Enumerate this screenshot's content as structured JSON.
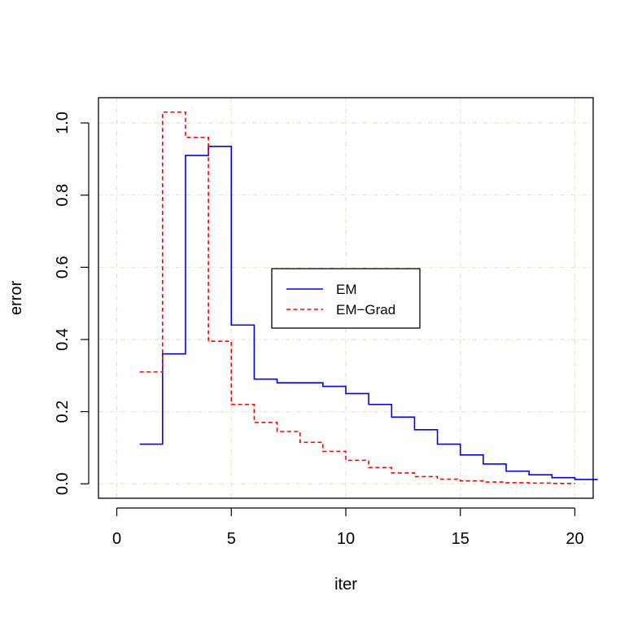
{
  "chart_data": {
    "type": "line",
    "step": "stairs",
    "xlabel": "iter",
    "ylabel": "error",
    "xlim": [
      -0.8,
      20.8
    ],
    "ylim": [
      -0.04,
      1.07
    ],
    "x_ticks": [
      0,
      5,
      10,
      15,
      20
    ],
    "x_tick_labels": [
      "0",
      "5",
      "10",
      "15",
      "20"
    ],
    "y_ticks": [
      0.0,
      0.2,
      0.4,
      0.6,
      0.8,
      1.0
    ],
    "y_tick_labels": [
      "0.0",
      "0.2",
      "0.4",
      "0.6",
      "0.8",
      "1.0"
    ],
    "grid": true,
    "grid_color": "#e8e4cc",
    "legend": "center",
    "series": [
      {
        "name": "EM",
        "color": "#0000ff",
        "line_style": "solid",
        "x": [
          1,
          2,
          3,
          4,
          5,
          6,
          7,
          8,
          9,
          10,
          11,
          12,
          13,
          14,
          15,
          16,
          17,
          18,
          19,
          20,
          21
        ],
        "values": [
          0.11,
          0.36,
          0.91,
          0.935,
          0.44,
          0.29,
          0.28,
          0.28,
          0.27,
          0.25,
          0.22,
          0.185,
          0.15,
          0.11,
          0.08,
          0.055,
          0.035,
          0.025,
          0.017,
          0.012,
          0.012
        ]
      },
      {
        "name": "EM−Grad",
        "color": "#ff0000",
        "line_style": "dashed",
        "x": [
          1,
          2,
          3,
          4,
          5,
          6,
          7,
          8,
          9,
          10,
          11,
          12,
          13,
          14,
          15,
          16,
          17,
          18,
          19,
          20
        ],
        "values": [
          0.31,
          1.03,
          0.96,
          0.395,
          0.22,
          0.17,
          0.145,
          0.115,
          0.09,
          0.065,
          0.045,
          0.03,
          0.02,
          0.013,
          0.008,
          0.005,
          0.003,
          0.002,
          0.001,
          0.001
        ]
      }
    ]
  }
}
